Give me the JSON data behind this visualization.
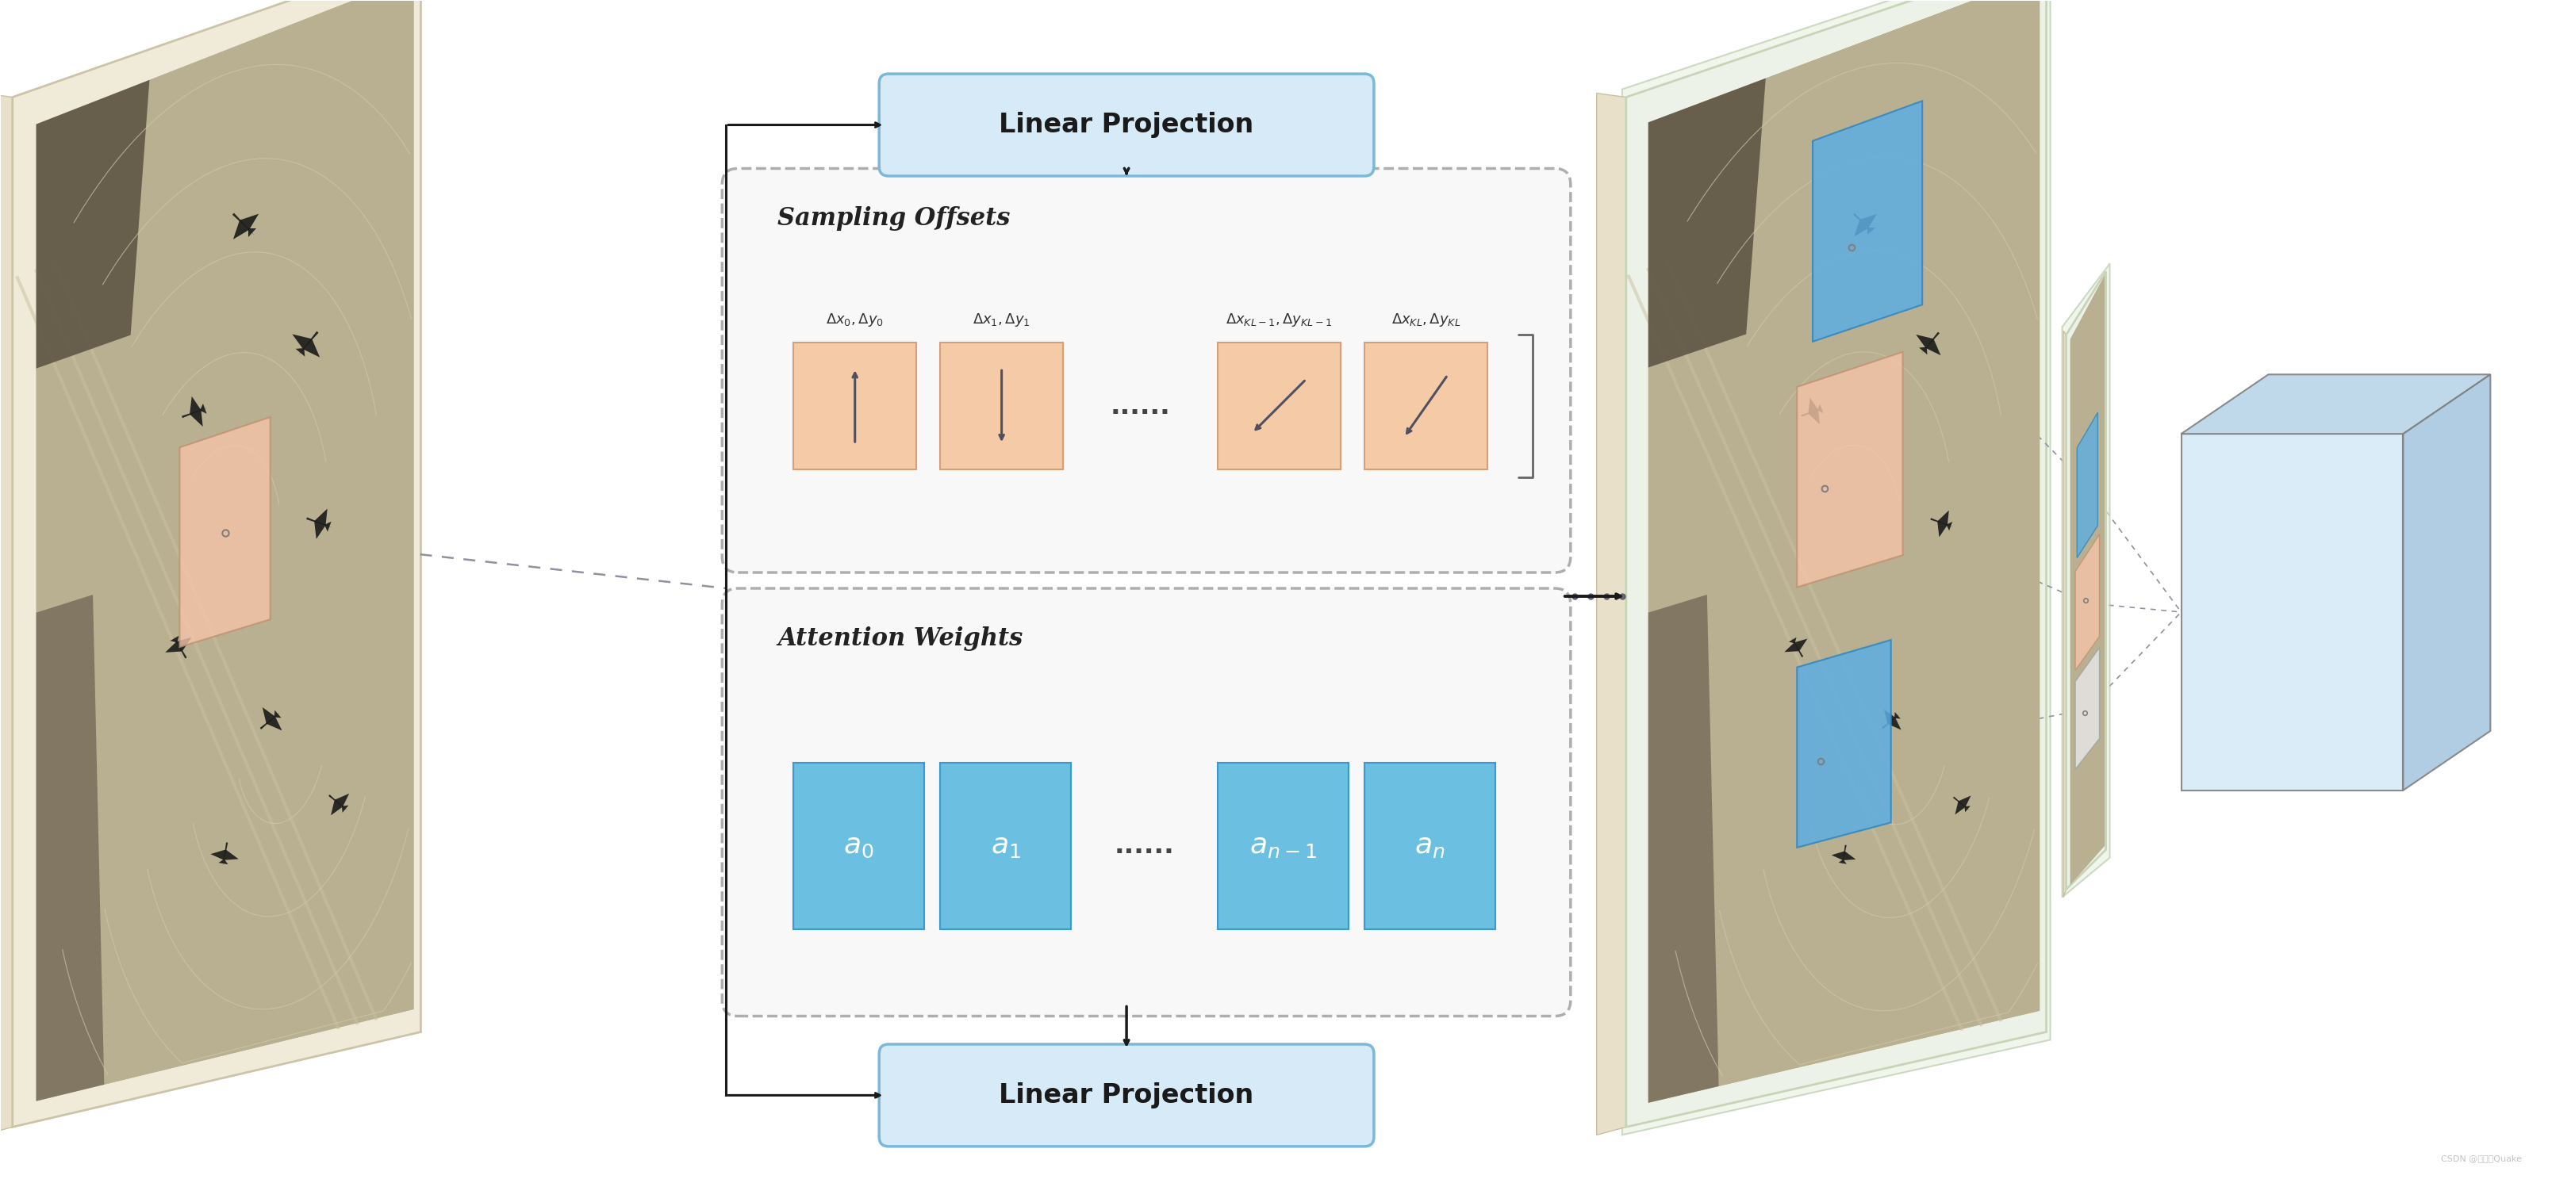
{
  "fig_width": 32.17,
  "fig_height": 14.92,
  "bg_color": "#ffffff",
  "linear_proj_box_color": "#d6eaf8",
  "linear_proj_box_edge": "#7ab8d9",
  "linear_proj_text": "Linear Projection",
  "sampling_offsets_label": "Sampling Offsets",
  "attention_weights_label": "Attention Weights",
  "sampling_box_color": "#f5cba7",
  "attention_box_color": "#6bbfe0",
  "arrow_color": "#1a1a1a",
  "offset_labels": [
    "$\\Delta x_0,\\Delta y_0$",
    "$\\Delta x_1,\\Delta y_1$",
    "$\\Delta x_{KL-1},\\Delta y_{KL-1}$",
    "$\\Delta x_{KL},\\Delta y_{KL}$"
  ],
  "attn_labels": [
    "$a_0$",
    "$a_1$",
    "$a_{n-1}$",
    "$a_n$"
  ],
  "ellipsis": "......",
  "frame_color_left": "#f0ead8",
  "frame_color_right": "#f0ead8",
  "frame_edge_left": "#d4cba8",
  "frame_edge_right": "#d4cba8",
  "img_bg_light": "#c8c0a0",
  "img_bg_dark": "#7a7060",
  "green_tint": "#e8f0e0",
  "cube_face_front": "#d6eaf8",
  "cube_face_top": "#c0d8ec",
  "cube_face_right": "#a8c8e0"
}
